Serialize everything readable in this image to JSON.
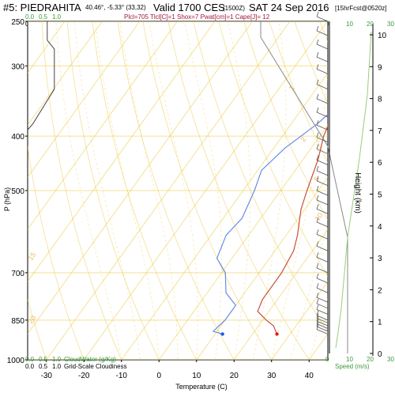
{
  "header": {
    "station": "#5: PIEDRAHITA",
    "coords": "40.46°, -5.33° (33,32)",
    "valid": "Valid 1700 CES",
    "valid_utc": "(1500Z)",
    "date": "SAT 24 Sep 2016",
    "forecast": "[15hrFcst@0520z]",
    "params": "Plcl=705 Tlcl[C]=1 Shox=7 Pwat[cm]=1 Cape[J]= 12"
  },
  "top_scale": {
    "cloudwater_ticks": [
      "0.0",
      "0.5",
      "1.0"
    ],
    "cloudiness_ticks": [
      "0.0",
      "0.5",
      "1.0"
    ],
    "speed_ticks": [
      "0",
      "10",
      "20",
      "30"
    ]
  },
  "bottom_legend": {
    "cloudwater_ticks": [
      "0.0",
      "0.5",
      "1.0"
    ],
    "cloudwater_label": "CloudWater (g/Kg)",
    "cloudiness_ticks": [
      "0.0",
      "0.5",
      "1.0"
    ],
    "cloudiness_label": "Grid-Scale Cloudiness",
    "speed_ticks": [
      "0",
      "10",
      "20",
      "30"
    ],
    "speed_label": "Speed (m/s)"
  },
  "chart_data": {
    "type": "line",
    "title": "Valid 1700 CES (1500Z) SAT 24 Sep 2016",
    "xlabel": "Temperature (C)",
    "ylabel": "P (hPa)",
    "y2label": "Height (km)",
    "xlim": [
      -35,
      45
    ],
    "ylim": [
      1000,
      250
    ],
    "y_scale": "log",
    "x_ticks": [
      -30,
      -20,
      -10,
      0,
      10,
      20,
      30,
      40
    ],
    "y_ticks": [
      250,
      300,
      400,
      500,
      700,
      850,
      1000
    ],
    "height_ticks": [
      0,
      1,
      2,
      3,
      4,
      5,
      6,
      7,
      8,
      9,
      10
    ],
    "grid": true,
    "series": [
      {
        "name": "Temperature",
        "color": "#c8503c",
        "points": [
          [
            26.5,
            900
          ],
          [
            24,
            870
          ],
          [
            21,
            850
          ],
          [
            17,
            820
          ],
          [
            16,
            780
          ],
          [
            16,
            720
          ],
          [
            16,
            700
          ],
          [
            15,
            640
          ],
          [
            13,
            600
          ],
          [
            9,
            540
          ],
          [
            7,
            500
          ],
          [
            4,
            440
          ],
          [
            1,
            400
          ],
          [
            -1,
            360
          ],
          [
            -4,
            320
          ],
          [
            -7,
            285
          ],
          [
            -9,
            265
          ],
          [
            -10,
            255
          ]
        ]
      },
      {
        "name": "Dewpoint",
        "color": "#6a8ce8",
        "points": [
          [
            12,
            900
          ],
          [
            9,
            890
          ],
          [
            10,
            850
          ],
          [
            10,
            800
          ],
          [
            5,
            760
          ],
          [
            1,
            700
          ],
          [
            -4,
            660
          ],
          [
            -6,
            600
          ],
          [
            -5,
            560
          ],
          [
            -7,
            500
          ],
          [
            -9,
            460
          ],
          [
            -7,
            420
          ],
          [
            -3,
            380
          ],
          [
            -1,
            350
          ],
          [
            -1,
            330
          ],
          [
            -4,
            300
          ],
          [
            -7,
            265
          ],
          [
            -9,
            250
          ]
        ]
      }
    ],
    "markers": [
      {
        "name": "surface-temperature",
        "x": 26.5,
        "p": 900,
        "color": "#e0201c"
      },
      {
        "name": "surface-dewpoint",
        "x": 12,
        "p": 900,
        "color": "#1a5ce8"
      }
    ],
    "cloudiness_profile": {
      "color": "#444444",
      "points": [
        [
          0.55,
          250
        ],
        [
          0.55,
          270
        ],
        [
          0.75,
          280
        ],
        [
          0.75,
          330
        ],
        [
          0.5,
          350
        ],
        [
          0.15,
          380
        ],
        [
          0.0,
          390
        ]
      ]
    },
    "mixing_ratio_labels": [
      "1",
      "2",
      "5",
      "10",
      "15",
      "20"
    ],
    "wind_barbs_pressure": [
      250,
      265,
      280,
      295,
      310,
      330,
      350,
      370,
      390,
      410,
      430,
      450,
      470,
      490,
      510,
      530,
      550,
      580,
      610,
      640,
      670,
      700,
      730,
      760,
      790,
      810,
      830,
      850,
      860,
      870,
      880,
      890,
      900
    ]
  }
}
